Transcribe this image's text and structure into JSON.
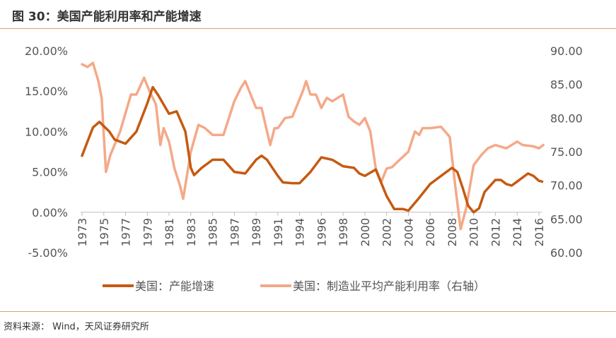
{
  "title": "图 30：美国产能利用率和产能增速",
  "source": "资料来源：  Wind，天风证券研究所",
  "chart_data": {
    "type": "line",
    "title": "",
    "x_tick_labels": [
      "1973",
      "1975",
      "1977",
      "1979",
      "1981",
      "1983",
      "1985",
      "1987",
      "1989",
      "1991",
      "1994",
      "1996",
      "1998",
      "2000",
      "2002",
      "2004",
      "2006",
      "2008",
      "2010",
      "2012",
      "2014",
      "2016"
    ],
    "left_axis": {
      "ylim": [
        -5,
        20
      ],
      "ticks": [
        "-5.00%",
        "0.00%",
        "5.00%",
        "10.00%",
        "15.00%",
        "20.00%"
      ],
      "tick_values": [
        -5,
        0,
        5,
        10,
        15,
        20
      ]
    },
    "right_axis": {
      "ylim": [
        60,
        90
      ],
      "ticks": [
        "60.00",
        "65.00",
        "70.00",
        "75.00",
        "80.00",
        "85.00",
        "90.00"
      ],
      "tick_values": [
        60,
        65,
        70,
        75,
        80,
        85,
        90
      ]
    },
    "grid": false,
    "legend": "bottom",
    "series": [
      {
        "name": "美国：产能增速",
        "axis": "left",
        "color": "#c55a11",
        "x": [
          1973,
          1974,
          1974.6,
          1975.5,
          1976,
          1977,
          1978,
          1979,
          1979.5,
          1980,
          1981,
          1981.7,
          1982.5,
          1983,
          1983.3,
          1984,
          1985,
          1986,
          1987,
          1988,
          1989,
          1989.5,
          1990,
          1991,
          1991.7,
          1993,
          1994,
          1995,
          1996,
          1997,
          1998,
          1999,
          1999.5,
          2000,
          2001,
          2002,
          2002.7,
          2003.5,
          2004,
          2005,
          2006,
          2007,
          2008,
          2008.5,
          2009,
          2009.5,
          2010,
          2010.5,
          2011,
          2012,
          2012.5,
          2013,
          2013.5,
          2014,
          2015,
          2015.5,
          2016,
          2016.3
        ],
        "y": [
          7.0,
          10.5,
          11.2,
          10.0,
          9.0,
          8.5,
          10.0,
          13.5,
          15.5,
          14.5,
          12.2,
          12.5,
          10.0,
          5.5,
          4.6,
          5.5,
          6.5,
          6.5,
          5.0,
          4.8,
          6.5,
          7.0,
          6.5,
          4.5,
          3.7,
          3.6,
          3.6,
          5.0,
          6.8,
          6.5,
          5.7,
          5.5,
          4.8,
          4.5,
          5.3,
          2.0,
          0.4,
          0.4,
          0.2,
          1.8,
          3.5,
          4.5,
          5.5,
          5.0,
          3.0,
          0.8,
          0.0,
          0.5,
          2.5,
          4.0,
          4.0,
          3.5,
          3.3,
          3.8,
          4.8,
          4.5,
          3.9,
          3.8
        ]
      },
      {
        "name": "美国：制造业平均产能利用率（右轴）",
        "axis": "right",
        "color": "#f4a988",
        "x": [
          1973,
          1973.5,
          1974,
          1974.5,
          1974.8,
          1975.2,
          1975.6,
          1976.5,
          1977.5,
          1978,
          1978.7,
          1979.2,
          1979.8,
          1980.2,
          1980.5,
          1981,
          1981.5,
          1982,
          1982.3,
          1983,
          1983.7,
          1984.3,
          1985,
          1986,
          1987,
          1987.6,
          1988,
          1989,
          1989.5,
          1990.3,
          1990.7,
          1991,
          1992,
          1993,
          1994.3,
          1994.6,
          1995,
          1995.5,
          1996,
          1996.5,
          1997,
          1998,
          1998.5,
          1999,
          1999.5,
          2000,
          2000.5,
          2001,
          2001.5,
          2002,
          2002.5,
          2003,
          2004,
          2004.6,
          2005,
          2005.3,
          2006,
          2007,
          2007.8,
          2008.3,
          2008.8,
          2009.3,
          2010,
          2010.7,
          2011.3,
          2012,
          2013,
          2014,
          2014.5,
          2015.5,
          2016,
          2016.4
        ],
        "y": [
          88,
          87.6,
          88.2,
          85.5,
          83,
          72,
          74.5,
          78,
          83.5,
          83.5,
          86,
          84,
          82,
          76,
          78.5,
          76.5,
          72.5,
          70,
          68,
          75,
          79,
          78.5,
          77.5,
          77.5,
          82.5,
          84.5,
          85.5,
          81.5,
          81.5,
          76,
          78.5,
          78.5,
          80,
          80.2,
          84,
          85.5,
          83.5,
          83.5,
          81.5,
          83,
          82.5,
          83.5,
          80.2,
          79.5,
          79,
          80,
          78,
          72.5,
          70.5,
          72.5,
          72.7,
          73.5,
          75,
          78,
          77.5,
          78.5,
          78.5,
          78.7,
          77.2,
          70,
          63.5,
          66.5,
          73,
          74.5,
          75.5,
          76,
          75.5,
          76.5,
          76,
          75.8,
          75.5,
          76
        ]
      }
    ]
  }
}
